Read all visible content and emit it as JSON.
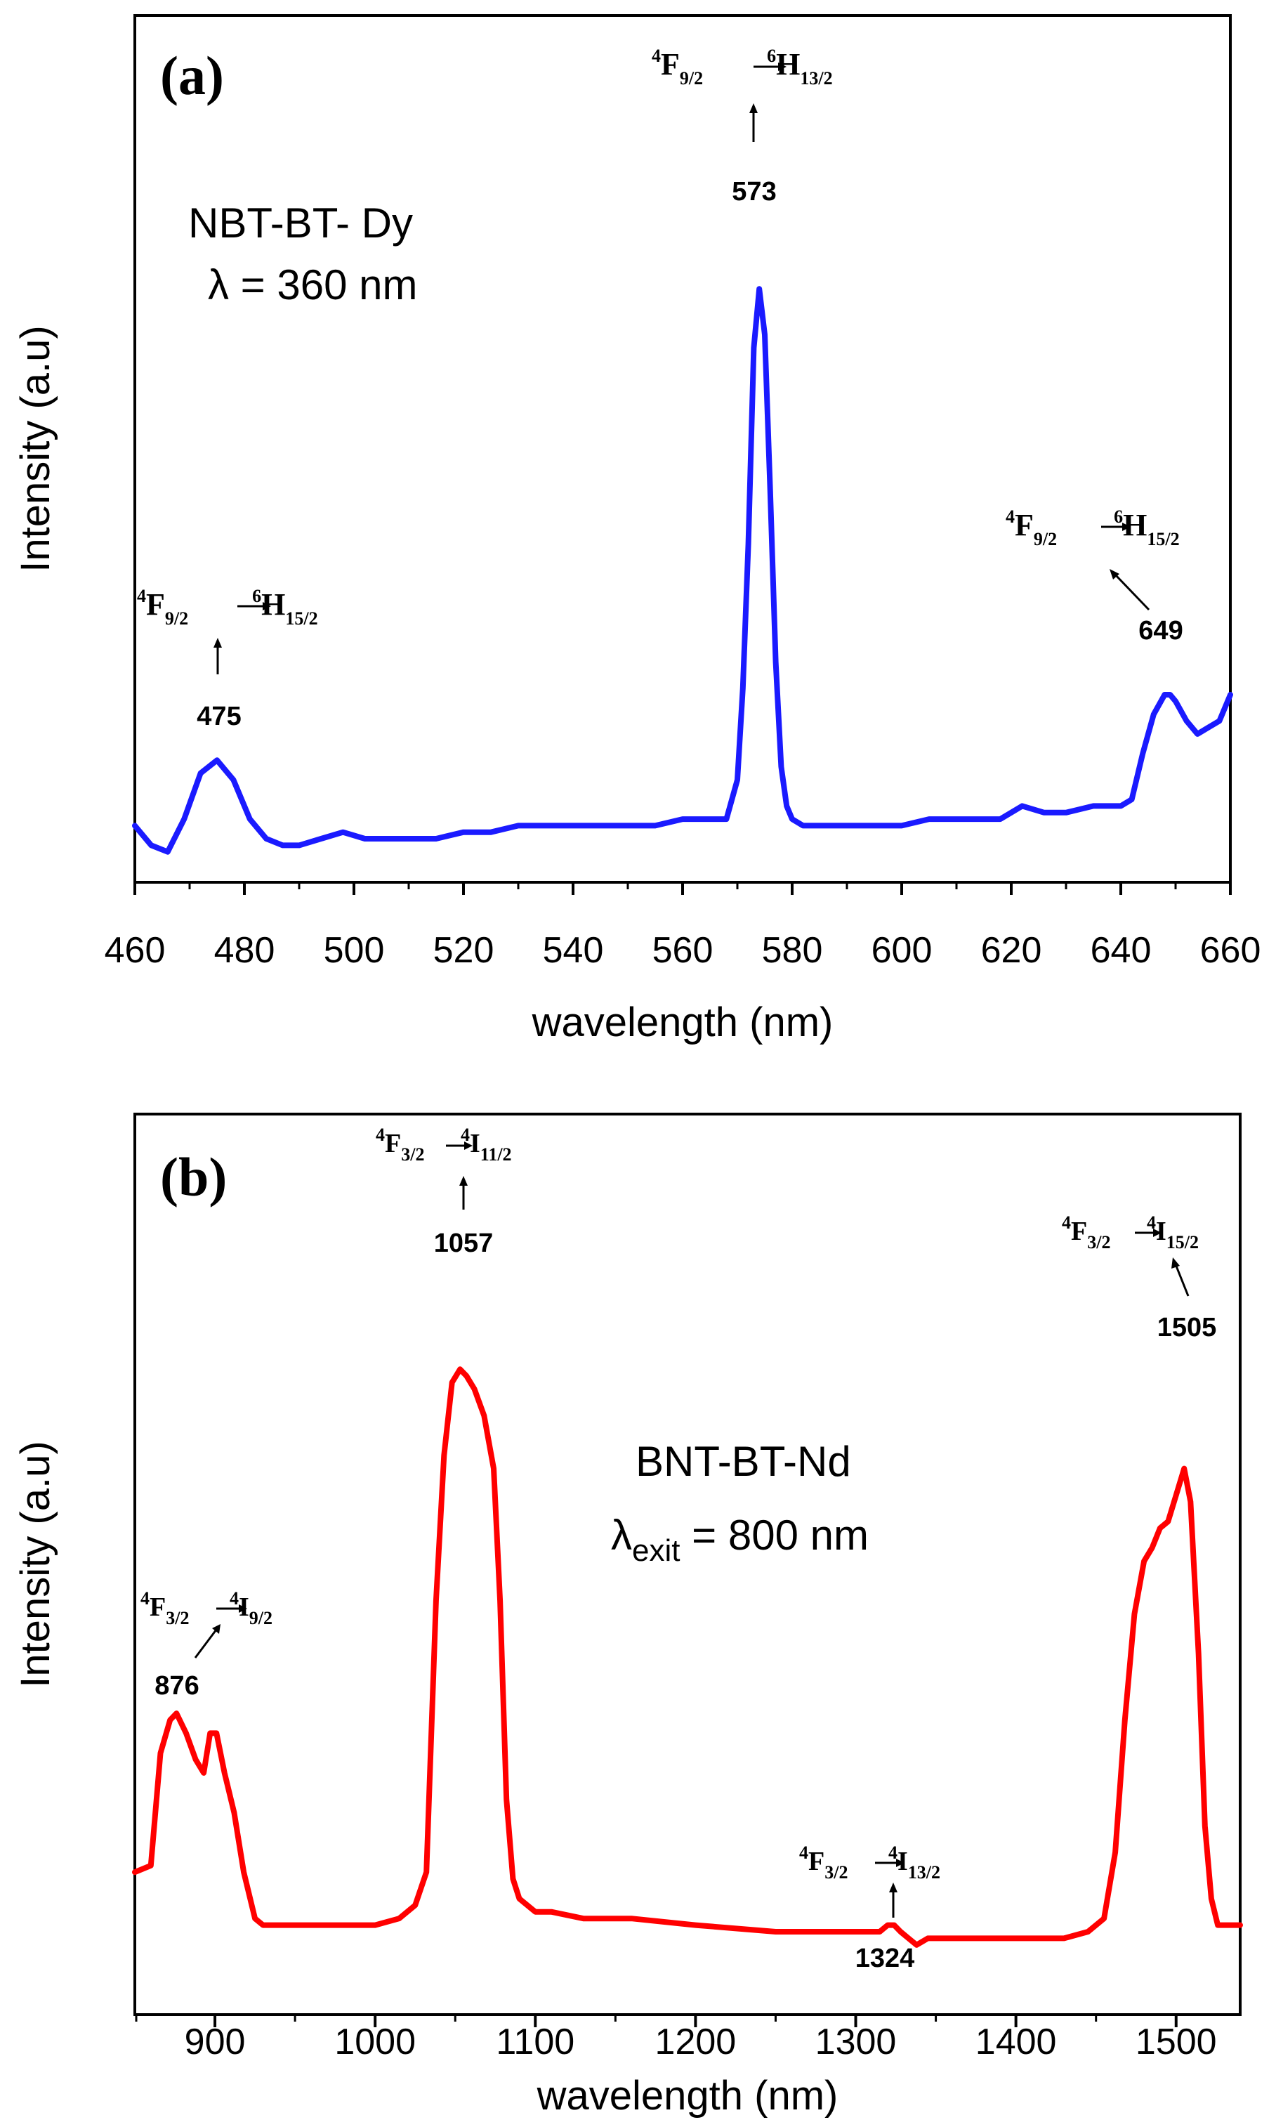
{
  "chart_data": [
    {
      "panel": "(a)",
      "type": "line",
      "sample": "NBT-BT- Dy",
      "excitation": "λ = 360 nm",
      "xlabel": "wavelength (nm)",
      "ylabel": "Intensity (a.u)",
      "xlim": [
        460,
        660
      ],
      "ylim": [
        0,
        100
      ],
      "xticks": [
        460,
        480,
        500,
        520,
        540,
        560,
        580,
        600,
        620,
        640,
        660
      ],
      "series": [
        {
          "name": "NBT-BT-Dy emission",
          "color": "#1a1aff",
          "x": [
            460,
            463,
            466,
            469,
            472,
            475,
            478,
            481,
            484,
            487,
            490,
            494,
            498,
            502,
            506,
            510,
            515,
            520,
            525,
            530,
            535,
            540,
            545,
            550,
            555,
            560,
            565,
            568,
            570,
            571,
            572,
            573,
            574,
            575,
            576,
            577,
            578,
            579,
            580,
            582,
            585,
            590,
            595,
            600,
            605,
            610,
            615,
            618,
            622,
            626,
            630,
            635,
            640,
            642,
            644,
            646,
            648,
            649,
            650,
            652,
            654,
            656,
            658,
            660
          ],
          "y": [
            5,
            2,
            1,
            6,
            13,
            15,
            12,
            6,
            3,
            2,
            2,
            3,
            4,
            3,
            3,
            3,
            3,
            4,
            4,
            5,
            5,
            5,
            5,
            5,
            5,
            6,
            6,
            6,
            12,
            26,
            48,
            78,
            87,
            80,
            56,
            30,
            14,
            8,
            6,
            5,
            5,
            5,
            5,
            5,
            6,
            6,
            6,
            6,
            8,
            7,
            7,
            8,
            8,
            9,
            16,
            22,
            25,
            25,
            24,
            21,
            19,
            20,
            21,
            25
          ]
        }
      ],
      "annotations": [
        {
          "peak": "475",
          "transition": {
            "from_sup": "4",
            "from": "F",
            "from_sub": "9/2",
            "to_sup": "6",
            "to": "H",
            "to_sub": "15/2"
          }
        },
        {
          "peak": "573",
          "transition": {
            "from_sup": "4",
            "from": "F",
            "from_sub": "9/2",
            "to_sup": "6",
            "to": "H",
            "to_sub": "13/2"
          }
        },
        {
          "peak": "649",
          "transition": {
            "from_sup": "4",
            "from": "F",
            "from_sub": "9/2",
            "to_sup": "6",
            "to": "H",
            "to_sub": "15/2"
          }
        }
      ]
    },
    {
      "panel": "(b)",
      "type": "line",
      "sample": "BNT-BT-Nd",
      "excitation_prefix": "λ",
      "excitation_sub": "exit",
      "excitation_suffix": " = 800 nm",
      "xlabel": "wavelength (nm)",
      "ylabel": "Intensity (a.u)",
      "xlim": [
        850,
        1540
      ],
      "ylim": [
        0,
        100
      ],
      "xticks": [
        900,
        1000,
        1100,
        1200,
        1300,
        1400,
        1500
      ],
      "series": [
        {
          "name": "BNT-BT-Nd emission",
          "color": "#ff0000",
          "x": [
            850,
            860,
            866,
            872,
            876,
            882,
            888,
            893,
            897,
            901,
            906,
            912,
            918,
            925,
            930,
            950,
            980,
            1000,
            1015,
            1025,
            1032,
            1038,
            1043,
            1048,
            1053,
            1057,
            1062,
            1068,
            1074,
            1078,
            1082,
            1086,
            1090,
            1095,
            1100,
            1110,
            1130,
            1160,
            1200,
            1250,
            1300,
            1315,
            1320,
            1324,
            1328,
            1333,
            1338,
            1345,
            1360,
            1400,
            1430,
            1445,
            1455,
            1462,
            1468,
            1474,
            1480,
            1485,
            1490,
            1495,
            1500,
            1505,
            1509,
            1514,
            1518,
            1522,
            1526,
            1530,
            1540
          ],
          "y": [
            9,
            10,
            27,
            32,
            33,
            30,
            26,
            24,
            30,
            30,
            24,
            18,
            9,
            2,
            1,
            1,
            1,
            1,
            2,
            4,
            9,
            50,
            72,
            83,
            85,
            84,
            82,
            78,
            70,
            50,
            20,
            8,
            5,
            4,
            3,
            3,
            2,
            2,
            1,
            0,
            0,
            0,
            1,
            1,
            0,
            -1,
            -2,
            -1,
            -1,
            -1,
            -1,
            0,
            2,
            12,
            32,
            48,
            56,
            58,
            61,
            62,
            66,
            70,
            65,
            42,
            16,
            5,
            1,
            1,
            1
          ],
          "start_y": 1
        }
      ],
      "annotations": [
        {
          "peak": "876",
          "transition": {
            "from_sup": "4",
            "from": "F",
            "from_sub": "3/2",
            "to_sup": "4",
            "to": "I",
            "to_sub": "9/2"
          }
        },
        {
          "peak": "1057",
          "transition": {
            "from_sup": "4",
            "from": "F",
            "from_sub": "3/2",
            "to_sup": "4",
            "to": "I",
            "to_sub": "11/2"
          }
        },
        {
          "peak": "1324",
          "transition": {
            "from_sup": "4",
            "from": "F",
            "from_sub": "3/2",
            "to_sup": "4",
            "to": "I",
            "to_sub": "13/2"
          }
        },
        {
          "peak": "1505",
          "transition": {
            "from_sup": "4",
            "from": "F",
            "from_sub": "3/2",
            "to_sup": "4",
            "to": "I",
            "to_sub": "15/2"
          }
        }
      ]
    }
  ]
}
